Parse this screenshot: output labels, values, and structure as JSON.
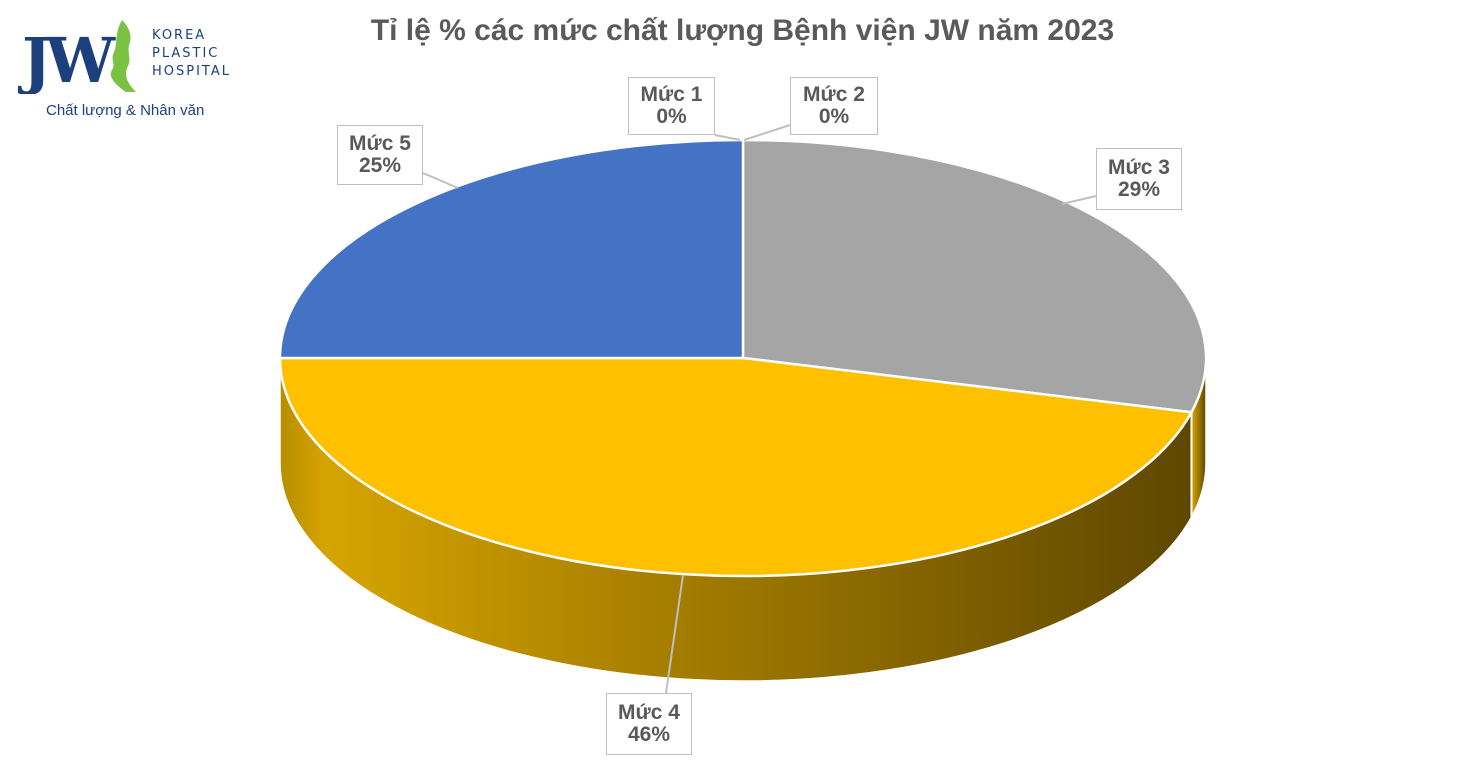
{
  "logo": {
    "mark": "JW",
    "lines": [
      "KOREA",
      "PLASTIC",
      "HOSPITAL"
    ],
    "slogan": "Chất lượng & Nhân văn"
  },
  "colors": {
    "brand_navy": "#1c3f7e",
    "brand_green": "#7cc242",
    "title": "#5a5a5a"
  },
  "chart_data": {
    "type": "pie",
    "style": "3d",
    "title": "Tỉ lệ % các mức chất lượng Bệnh viện JW năm 2023",
    "slices": [
      {
        "name": "Mức 1",
        "value": 0,
        "label": "0%",
        "color": "#4472c4"
      },
      {
        "name": "Mức 2",
        "value": 0,
        "label": "0%",
        "color": "#ed7d31"
      },
      {
        "name": "Mức 3",
        "value": 29,
        "label": "29%",
        "color": "#a5a5a5"
      },
      {
        "name": "Mức 4",
        "value": 46,
        "label": "46%",
        "color": "#ffc000"
      },
      {
        "name": "Mức 5",
        "value": 25,
        "label": "25%",
        "color": "#4472c4"
      }
    ]
  }
}
